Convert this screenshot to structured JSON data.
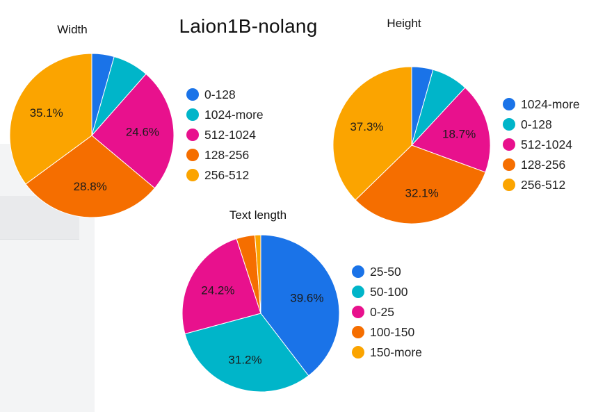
{
  "title": "Laion1B-nolang",
  "chart_data": [
    {
      "type": "pie",
      "title": "Width",
      "slices": [
        {
          "label": "0-128",
          "value": 4.4,
          "color": "#1a73e8"
        },
        {
          "label": "1024-more",
          "value": 7.1,
          "color": "#00b5c9"
        },
        {
          "label": "512-1024",
          "value": 24.6,
          "color": "#e8118d"
        },
        {
          "label": "128-256",
          "value": 28.8,
          "color": "#f56e00"
        },
        {
          "label": "256-512",
          "value": 35.1,
          "color": "#fba400"
        }
      ],
      "labels_shown": [
        "512-1024",
        "128-256",
        "256-512"
      ]
    },
    {
      "type": "pie",
      "title": "Height",
      "slices": [
        {
          "label": "1024-more",
          "value": 4.4,
          "color": "#1a73e8"
        },
        {
          "label": "0-128",
          "value": 7.5,
          "color": "#00b5c9"
        },
        {
          "label": "512-1024",
          "value": 18.7,
          "color": "#e8118d"
        },
        {
          "label": "128-256",
          "value": 32.1,
          "color": "#f56e00"
        },
        {
          "label": "256-512",
          "value": 37.3,
          "color": "#fba400"
        }
      ],
      "labels_shown": [
        "512-1024",
        "128-256",
        "256-512"
      ]
    },
    {
      "type": "pie",
      "title": "Text length",
      "slices": [
        {
          "label": "25-50",
          "value": 39.6,
          "color": "#1a73e8"
        },
        {
          "label": "50-100",
          "value": 31.2,
          "color": "#00b5c9"
        },
        {
          "label": "0-25",
          "value": 24.2,
          "color": "#e8118d"
        },
        {
          "label": "100-150",
          "value": 3.8,
          "color": "#f56e00"
        },
        {
          "label": "150-more",
          "value": 1.2,
          "color": "#fba400"
        }
      ],
      "labels_shown": [
        "25-50",
        "50-100",
        "0-25"
      ]
    }
  ]
}
